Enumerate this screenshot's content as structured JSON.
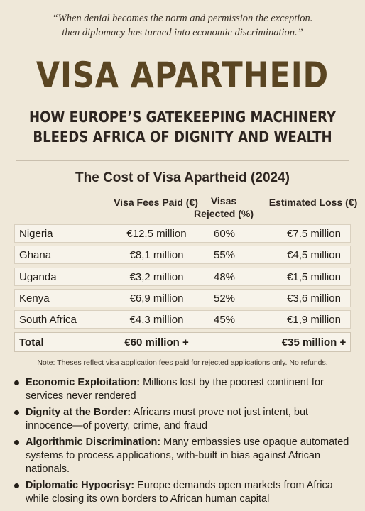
{
  "quote": {
    "line1": "“When denial becomes the norm and permission the exception.",
    "line2": "then diplomacy has turned into economic discrimination.”"
  },
  "title": "VISA APARTHEID",
  "subtitle": {
    "line1": "HOW EUROPE’S GATEKEEPING MACHINERY",
    "line2": "BLEEDS AFRICA OF DIGNITY AND WEALTH"
  },
  "table": {
    "title": "The Cost of Visa Apartheid (2024)",
    "headers": {
      "fees": "Visa Fees Paid (€)",
      "rejected_line1": "Visas",
      "rejected_line2": "Rejected (%)",
      "loss": "Estimated Loss (€)"
    },
    "rows": [
      {
        "country": "Nigeria",
        "fees": "€12.5 million",
        "rejected": "60%",
        "loss": "€7.5 million"
      },
      {
        "country": "Ghana",
        "fees": "€8,1 million",
        "rejected": "55%",
        "loss": "€4,5 million"
      },
      {
        "country": "Uganda",
        "fees": "€3,2 million",
        "rejected": "48%",
        "loss": "€1,5 million"
      },
      {
        "country": "Kenya",
        "fees": "€6,9 million",
        "rejected": "52%",
        "loss": "€3,6 million"
      },
      {
        "country": "South Africa",
        "fees": "€4,3 million",
        "rejected": "45%",
        "loss": "€1,9 million"
      }
    ],
    "total": {
      "label": "Total",
      "fees": "€60 million +",
      "loss": "€35 million +"
    }
  },
  "note": "Note: Theses reflect visa application fees paid for rejected applications only. No refunds.",
  "bullets": [
    {
      "label": "Economic Exploitation:",
      "text": " Millions lost by the poorest continent for services never rendered"
    },
    {
      "label": "Dignity at the Border:",
      "text": " Africans must prove not just intent, but innocence—of poverty, crime, and fraud"
    },
    {
      "label": "Algorithmic Discrimination:",
      "text": " Many embassies use opaque automated systems to process applications, with-built in bias against African nationals."
    },
    {
      "label": "Diplomatic Hypocrisy:",
      "text": " Europe demands open markets from Africa while closing its own borders to African human capital"
    }
  ]
}
